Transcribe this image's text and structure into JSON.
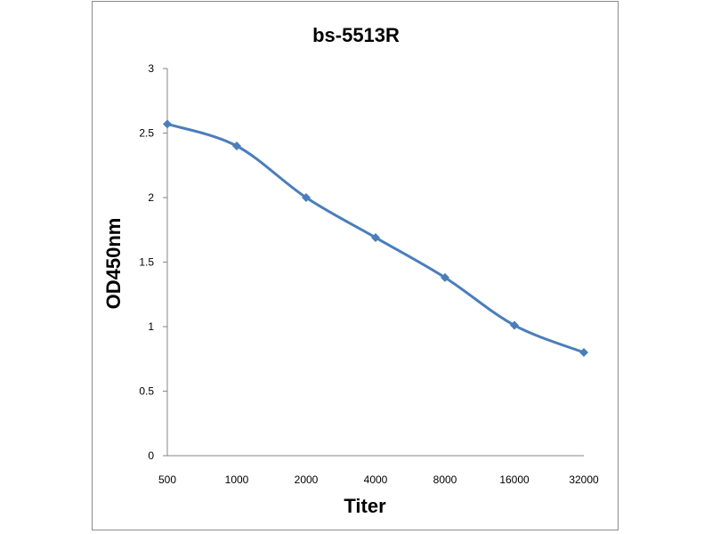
{
  "chart_data": {
    "type": "line",
    "title": "bs-5513R",
    "xlabel": "Titer",
    "ylabel": "OD450nm",
    "categories": [
      "500",
      "1000",
      "2000",
      "4000",
      "8000",
      "16000",
      "32000"
    ],
    "series": [
      {
        "values": [
          2.57,
          2.4,
          2.0,
          1.69,
          1.38,
          1.01,
          0.8
        ]
      }
    ],
    "ylim": [
      0,
      3
    ],
    "yticks": [
      "0",
      "0.5",
      "1",
      "1.5",
      "2",
      "2.5",
      "3"
    ],
    "grid": false,
    "legend": "none",
    "colors": {
      "series": "#4a7ebb",
      "axis": "#868686"
    }
  }
}
